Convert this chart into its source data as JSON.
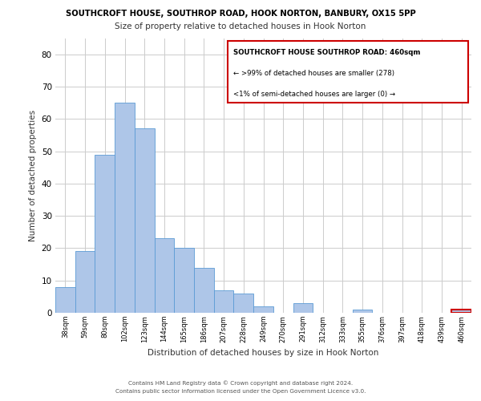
{
  "title_line1": "SOUTHCROFT HOUSE, SOUTHROP ROAD, HOOK NORTON, BANBURY, OX15 5PP",
  "title_line2": "Size of property relative to detached houses in Hook Norton",
  "xlabel": "Distribution of detached houses by size in Hook Norton",
  "ylabel": "Number of detached properties",
  "bar_labels": [
    "38sqm",
    "59sqm",
    "80sqm",
    "102sqm",
    "123sqm",
    "144sqm",
    "165sqm",
    "186sqm",
    "207sqm",
    "228sqm",
    "249sqm",
    "270sqm",
    "291sqm",
    "312sqm",
    "333sqm",
    "355sqm",
    "376sqm",
    "397sqm",
    "418sqm",
    "439sqm",
    "460sqm"
  ],
  "bar_values": [
    8,
    19,
    49,
    65,
    57,
    23,
    20,
    14,
    7,
    6,
    2,
    0,
    3,
    0,
    0,
    1,
    0,
    0,
    0,
    0,
    1
  ],
  "bar_color": "#aec6e8",
  "bar_edge_color": "#5b9bd5",
  "highlight_bar_index": 20,
  "highlight_bar_edge_color": "#cc0000",
  "ylim": [
    0,
    85
  ],
  "yticks": [
    0,
    10,
    20,
    30,
    40,
    50,
    60,
    70,
    80
  ],
  "annotation_box_text_line1": "SOUTHCROFT HOUSE SOUTHROP ROAD: 460sqm",
  "annotation_box_text_line2": "← >99% of detached houses are smaller (278)",
  "annotation_box_text_line3": "<1% of semi-detached houses are larger (0) →",
  "annotation_box_edge_color": "#cc0000",
  "footer_line1": "Contains HM Land Registry data © Crown copyright and database right 2024.",
  "footer_line2": "Contains public sector information licensed under the Open Government Licence v3.0.",
  "background_color": "#ffffff",
  "grid_color": "#cccccc"
}
